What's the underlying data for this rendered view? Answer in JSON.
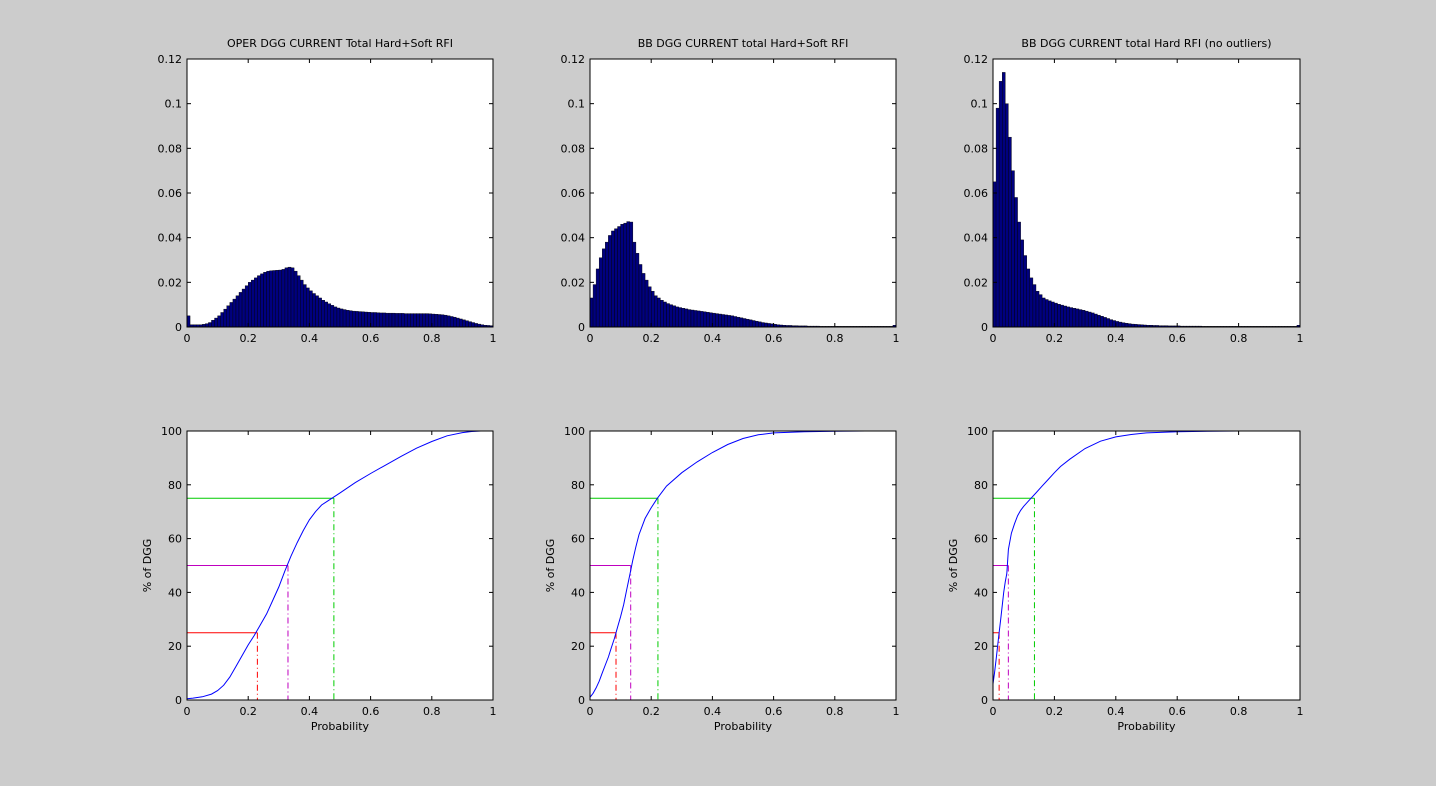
{
  "colors": {
    "figure_background": "#cccccc",
    "axes_background": "#ffffff",
    "bar_fill": "#00007f",
    "cdf_line": "#0000ff",
    "q25": "#ff0000",
    "q50": "#bf00bf",
    "q75": "#00cc00"
  },
  "chart_data": [
    {
      "type": "bar",
      "title": "OPER DGG CURRENT Total Hard+Soft RFI",
      "xlabel": "",
      "ylabel": "",
      "xlim": [
        0,
        1
      ],
      "ylim": [
        0,
        0.12
      ],
      "xticks": [
        0,
        0.2,
        0.4,
        0.6,
        0.8,
        1
      ],
      "yticks": [
        0,
        0.02,
        0.04,
        0.06,
        0.08,
        0.1,
        0.12
      ],
      "xtick_labels": [
        "0",
        "0.2",
        "0.4",
        "0.6",
        "0.8",
        "1"
      ],
      "ytick_labels": [
        "0",
        "0.02",
        "0.04",
        "0.06",
        "0.08",
        "0.1",
        "0.12"
      ],
      "bin_start": 0,
      "bin_width": 0.01,
      "values": [
        0.005,
        0.001,
        0.001,
        0.001,
        0.001,
        0.0012,
        0.0015,
        0.002,
        0.003,
        0.004,
        0.005,
        0.0065,
        0.008,
        0.0095,
        0.011,
        0.0125,
        0.014,
        0.0155,
        0.017,
        0.0185,
        0.02,
        0.021,
        0.022,
        0.023,
        0.0238,
        0.0245,
        0.025,
        0.0252,
        0.0253,
        0.0254,
        0.0255,
        0.0258,
        0.0265,
        0.0268,
        0.0265,
        0.025,
        0.023,
        0.021,
        0.019,
        0.0175,
        0.0162,
        0.015,
        0.014,
        0.013,
        0.012,
        0.0112,
        0.0104,
        0.0097,
        0.009,
        0.0085,
        0.0081,
        0.0078,
        0.0075,
        0.0073,
        0.0071,
        0.007,
        0.0069,
        0.0068,
        0.0067,
        0.0066,
        0.0065,
        0.0065,
        0.0064,
        0.0063,
        0.0063,
        0.0062,
        0.0062,
        0.0062,
        0.0061,
        0.0061,
        0.0061,
        0.006,
        0.006,
        0.006,
        0.006,
        0.006,
        0.006,
        0.006,
        0.006,
        0.0059,
        0.0058,
        0.0057,
        0.0056,
        0.0055,
        0.0053,
        0.005,
        0.0047,
        0.0044,
        0.004,
        0.0036,
        0.0032,
        0.0028,
        0.0024,
        0.002,
        0.0016,
        0.0013,
        0.001,
        0.0008,
        0.0007,
        0.0006
      ]
    },
    {
      "type": "bar",
      "title": "BB DGG CURRENT total Hard+Soft RFI",
      "xlabel": "",
      "ylabel": "",
      "xlim": [
        0,
        1
      ],
      "ylim": [
        0,
        0.12
      ],
      "xticks": [
        0,
        0.2,
        0.4,
        0.6,
        0.8,
        1
      ],
      "yticks": [
        0,
        0.02,
        0.04,
        0.06,
        0.08,
        0.1,
        0.12
      ],
      "xtick_labels": [
        "0",
        "0.2",
        "0.4",
        "0.6",
        "0.8",
        "1"
      ],
      "ytick_labels": [
        "0",
        "0.02",
        "0.04",
        "0.06",
        "0.08",
        "0.1",
        "0.12"
      ],
      "bin_start": 0,
      "bin_width": 0.01,
      "values": [
        0.013,
        0.019,
        0.026,
        0.031,
        0.035,
        0.038,
        0.041,
        0.043,
        0.044,
        0.045,
        0.046,
        0.0465,
        0.0472,
        0.047,
        0.038,
        0.033,
        0.028,
        0.024,
        0.021,
        0.018,
        0.016,
        0.014,
        0.013,
        0.012,
        0.0112,
        0.0105,
        0.01,
        0.0095,
        0.009,
        0.0087,
        0.0084,
        0.0081,
        0.0078,
        0.0076,
        0.0074,
        0.0072,
        0.007,
        0.0068,
        0.0066,
        0.0064,
        0.0062,
        0.006,
        0.0058,
        0.0056,
        0.0054,
        0.0052,
        0.005,
        0.0047,
        0.0044,
        0.0041,
        0.0038,
        0.0035,
        0.0032,
        0.0029,
        0.0026,
        0.0023,
        0.002,
        0.0018,
        0.0016,
        0.0014,
        0.0012,
        0.001,
        0.0009,
        0.0008,
        0.0007,
        0.0007,
        0.0006,
        0.0006,
        0.0005,
        0.0005,
        0.0005,
        0.0004,
        0.0004,
        0.0004,
        0.0004,
        0.0003,
        0.0003,
        0.0003,
        0.0003,
        0.0003,
        0.0003,
        0.0003,
        0.0003,
        0.0003,
        0.0003,
        0.0003,
        0.0003,
        0.0003,
        0.0003,
        0.0003,
        0.0003,
        0.0003,
        0.0003,
        0.0003,
        0.0003,
        0.0003,
        0.0003,
        0.0003,
        0.0003,
        0.0008
      ]
    },
    {
      "type": "bar",
      "title": "BB DGG CURRENT total Hard RFI (no outliers)",
      "xlabel": "",
      "ylabel": "",
      "xlim": [
        0,
        1
      ],
      "ylim": [
        0,
        0.12
      ],
      "xticks": [
        0,
        0.2,
        0.4,
        0.6,
        0.8,
        1
      ],
      "yticks": [
        0,
        0.02,
        0.04,
        0.06,
        0.08,
        0.1,
        0.12
      ],
      "xtick_labels": [
        "0",
        "0.2",
        "0.4",
        "0.6",
        "0.8",
        "1"
      ],
      "ytick_labels": [
        "0",
        "0.02",
        "0.04",
        "0.06",
        "0.08",
        "0.1",
        "0.12"
      ],
      "bin_start": 0,
      "bin_width": 0.01,
      "values": [
        0.065,
        0.098,
        0.11,
        0.114,
        0.1,
        0.085,
        0.07,
        0.058,
        0.047,
        0.039,
        0.032,
        0.026,
        0.022,
        0.019,
        0.016,
        0.0145,
        0.013,
        0.0123,
        0.0117,
        0.0112,
        0.0107,
        0.0102,
        0.0098,
        0.0094,
        0.009,
        0.0087,
        0.0084,
        0.0081,
        0.0078,
        0.0075,
        0.0071,
        0.0067,
        0.0063,
        0.0058,
        0.0053,
        0.0048,
        0.0043,
        0.0038,
        0.0033,
        0.0029,
        0.0025,
        0.0022,
        0.0019,
        0.0017,
        0.0015,
        0.0013,
        0.0012,
        0.0011,
        0.001,
        0.0009,
        0.0008,
        0.0008,
        0.0007,
        0.0007,
        0.0006,
        0.0006,
        0.0006,
        0.0005,
        0.0005,
        0.0005,
        0.0005,
        0.0004,
        0.0004,
        0.0004,
        0.0004,
        0.0004,
        0.0004,
        0.0004,
        0.0003,
        0.0003,
        0.0003,
        0.0003,
        0.0003,
        0.0003,
        0.0003,
        0.0003,
        0.0003,
        0.0003,
        0.0003,
        0.0003,
        0.0003,
        0.0003,
        0.0003,
        0.0003,
        0.0003,
        0.0003,
        0.0003,
        0.0003,
        0.0003,
        0.0003,
        0.0003,
        0.0003,
        0.0003,
        0.0003,
        0.0003,
        0.0003,
        0.0003,
        0.0003,
        0.0003,
        0.0008
      ]
    },
    {
      "type": "line",
      "title": "",
      "xlabel": "Probability",
      "ylabel": "% of DGG",
      "xlim": [
        0,
        1
      ],
      "ylim": [
        0,
        100
      ],
      "xticks": [
        0,
        0.2,
        0.4,
        0.6,
        0.8,
        1
      ],
      "yticks": [
        0,
        20,
        40,
        60,
        80,
        100
      ],
      "xtick_labels": [
        "0",
        "0.2",
        "0.4",
        "0.6",
        "0.8",
        "1"
      ],
      "ytick_labels": [
        "0",
        "20",
        "40",
        "60",
        "80",
        "100"
      ],
      "x": [
        0,
        0.02,
        0.05,
        0.08,
        0.1,
        0.12,
        0.14,
        0.16,
        0.18,
        0.2,
        0.22,
        0.24,
        0.26,
        0.28,
        0.3,
        0.32,
        0.34,
        0.36,
        0.38,
        0.4,
        0.42,
        0.44,
        0.46,
        0.48,
        0.5,
        0.55,
        0.6,
        0.65,
        0.7,
        0.75,
        0.8,
        0.85,
        0.9,
        0.93,
        0.96,
        1
      ],
      "y": [
        0.5,
        0.7,
        1.2,
        2.2,
        3.5,
        5.5,
        8.5,
        12.5,
        16.5,
        20.5,
        24,
        28,
        32,
        37,
        42,
        48,
        53.5,
        58.5,
        63,
        67,
        70,
        72.5,
        74,
        75.5,
        77,
        80.8,
        84.2,
        87.4,
        90.6,
        93.6,
        96.1,
        98.2,
        99.4,
        99.8,
        100,
        100
      ],
      "quantiles": [
        {
          "p": 25,
          "x": 0.23,
          "color": "#ff0000"
        },
        {
          "p": 50,
          "x": 0.33,
          "color": "#bf00bf"
        },
        {
          "p": 75,
          "x": 0.48,
          "color": "#00cc00"
        }
      ]
    },
    {
      "type": "line",
      "title": "",
      "xlabel": "Probability",
      "ylabel": "% of DGG",
      "xlim": [
        0,
        1
      ],
      "ylim": [
        0,
        100
      ],
      "xticks": [
        0,
        0.2,
        0.4,
        0.6,
        0.8,
        1
      ],
      "yticks": [
        0,
        20,
        40,
        60,
        80,
        100
      ],
      "xtick_labels": [
        "0",
        "0.2",
        "0.4",
        "0.6",
        "0.8",
        "1"
      ],
      "ytick_labels": [
        "0",
        "20",
        "40",
        "60",
        "80",
        "100"
      ],
      "x": [
        0,
        0.01,
        0.02,
        0.03,
        0.04,
        0.05,
        0.06,
        0.07,
        0.08,
        0.09,
        0.1,
        0.11,
        0.12,
        0.13,
        0.14,
        0.15,
        0.16,
        0.18,
        0.2,
        0.22,
        0.25,
        0.3,
        0.35,
        0.4,
        0.45,
        0.5,
        0.55,
        0.6,
        0.7,
        0.8,
        0.9,
        1
      ],
      "y": [
        1,
        2.5,
        4.5,
        7,
        10,
        13,
        16,
        19.5,
        23,
        27,
        31,
        35.5,
        41,
        46.5,
        52,
        57,
        61.5,
        67.5,
        71.5,
        75,
        79.5,
        84.5,
        88.5,
        92,
        95,
        97.2,
        98.6,
        99.3,
        99.7,
        99.9,
        100,
        100
      ],
      "quantiles": [
        {
          "p": 25,
          "x": 0.085,
          "color": "#ff0000"
        },
        {
          "p": 50,
          "x": 0.133,
          "color": "#bf00bf"
        },
        {
          "p": 75,
          "x": 0.222,
          "color": "#00cc00"
        }
      ]
    },
    {
      "type": "line",
      "title": "",
      "xlabel": "Probability",
      "ylabel": "% of DGG",
      "xlim": [
        0,
        1
      ],
      "ylim": [
        0,
        100
      ],
      "xticks": [
        0,
        0.2,
        0.4,
        0.6,
        0.8,
        1
      ],
      "yticks": [
        0,
        20,
        40,
        60,
        80,
        100
      ],
      "xtick_labels": [
        "0",
        "0.2",
        "0.4",
        "0.6",
        "0.8",
        "1"
      ],
      "ytick_labels": [
        "0",
        "20",
        "40",
        "60",
        "80",
        "100"
      ],
      "x": [
        0,
        0.005,
        0.01,
        0.015,
        0.02,
        0.025,
        0.03,
        0.035,
        0.04,
        0.045,
        0.05,
        0.06,
        0.07,
        0.08,
        0.09,
        0.1,
        0.12,
        0.14,
        0.16,
        0.18,
        0.2,
        0.22,
        0.25,
        0.3,
        0.35,
        0.4,
        0.45,
        0.5,
        0.6,
        0.7,
        0.8,
        1
      ],
      "y": [
        6,
        10,
        15,
        20,
        25,
        30,
        35,
        40,
        44,
        47,
        56,
        62,
        65.5,
        68.5,
        70.5,
        72,
        74.5,
        77,
        79.5,
        82,
        84.5,
        86.8,
        89.5,
        93.5,
        96.2,
        97.8,
        98.7,
        99.3,
        99.7,
        99.9,
        100,
        100
      ],
      "quantiles": [
        {
          "p": 25,
          "x": 0.02,
          "color": "#ff0000"
        },
        {
          "p": 50,
          "x": 0.05,
          "color": "#bf00bf"
        },
        {
          "p": 75,
          "x": 0.135,
          "color": "#00cc00"
        }
      ]
    }
  ]
}
